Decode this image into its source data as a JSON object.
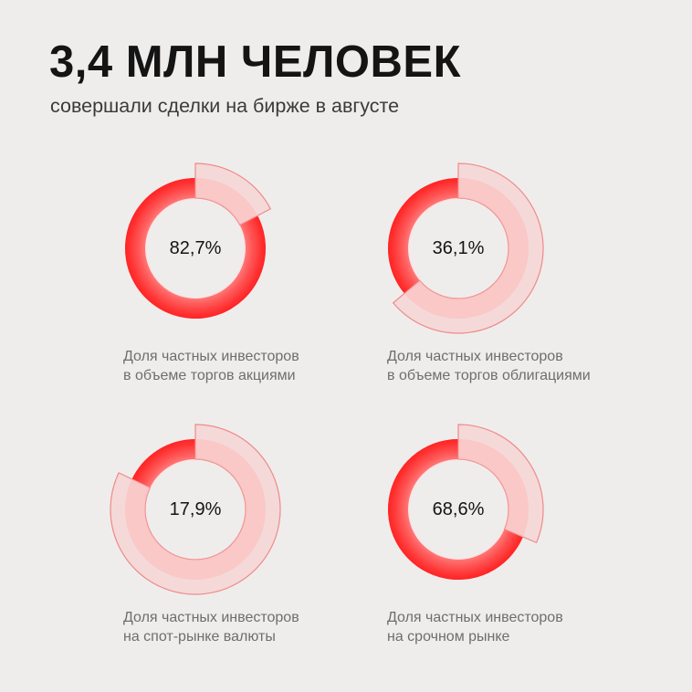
{
  "header": {
    "title": "3,4 МЛН ЧЕЛОВЕК",
    "subtitle": "совершали сделки на бирже в августе"
  },
  "colors": {
    "accent": "#ff1a1a",
    "faded_ring": "#f6d2d2",
    "background": "#efedec"
  },
  "chart_data": [
    {
      "type": "pie",
      "value": 82.7,
      "value_label": "82,7%",
      "caption_lines": [
        "Доля частных инвесторов",
        "в объеме торгов акциями"
      ]
    },
    {
      "type": "pie",
      "value": 36.1,
      "value_label": "36,1%",
      "caption_lines": [
        "Доля частных инвесторов",
        "в объеме торгов облигациями"
      ]
    },
    {
      "type": "pie",
      "value": 17.9,
      "value_label": "17,9%",
      "caption_lines": [
        "Доля частных инвесторов",
        "на спот-рынке валюты"
      ]
    },
    {
      "type": "pie",
      "value": 68.6,
      "value_label": "68,6%",
      "caption_lines": [
        "Доля частных инвесторов",
        "на срочном рынке"
      ]
    }
  ]
}
